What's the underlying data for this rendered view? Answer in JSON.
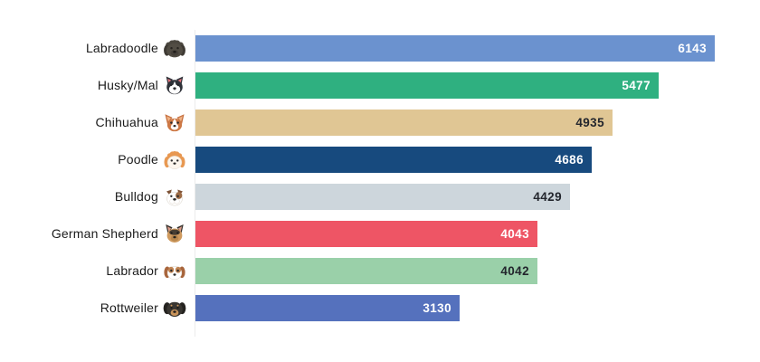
{
  "chart_data": {
    "type": "bar",
    "orientation": "horizontal",
    "title": "",
    "xlabel": "",
    "ylabel": "",
    "xlim": [
      0,
      6143
    ],
    "grid": false,
    "legend": "none",
    "categories": [
      "Labradoodle",
      "Husky/Mal",
      "Chihuahua",
      "Poodle",
      "Bulldog",
      "German Shepherd",
      "Labrador",
      "Rottweiler"
    ],
    "values": [
      6143,
      5477,
      4935,
      4686,
      4429,
      4043,
      4042,
      3130
    ],
    "value_labels_position": "inside-end",
    "rows": [
      {
        "label": "Labradoodle",
        "icon": "labradoodle-dog-icon",
        "value": "6143",
        "bar_color": "#6b92cf",
        "value_color": "#ffffff"
      },
      {
        "label": "Husky/Mal",
        "icon": "husky-dog-icon",
        "value": "5477",
        "bar_color": "#2fb080",
        "value_color": "#ffffff"
      },
      {
        "label": "Chihuahua",
        "icon": "chihuahua-dog-icon",
        "value": "4935",
        "bar_color": "#e0c694",
        "value_color": "#23262d"
      },
      {
        "label": "Poodle",
        "icon": "poodle-dog-icon",
        "value": "4686",
        "bar_color": "#174a7e",
        "value_color": "#ffffff"
      },
      {
        "label": "Bulldog",
        "icon": "bulldog-dog-icon",
        "value": "4429",
        "bar_color": "#cdd6dc",
        "value_color": "#23262d"
      },
      {
        "label": "German Shepherd",
        "icon": "german-shepherd-dog-icon",
        "value": "4043",
        "bar_color": "#ee5565",
        "value_color": "#ffffff"
      },
      {
        "label": "Labrador",
        "icon": "labrador-dog-icon",
        "value": "4042",
        "bar_color": "#9ad0a9",
        "value_color": "#23262d"
      },
      {
        "label": "Rottweiler",
        "icon": "rottweiler-dog-icon",
        "value": "3130",
        "bar_color": "#5571bd",
        "value_color": "#ffffff"
      }
    ]
  }
}
